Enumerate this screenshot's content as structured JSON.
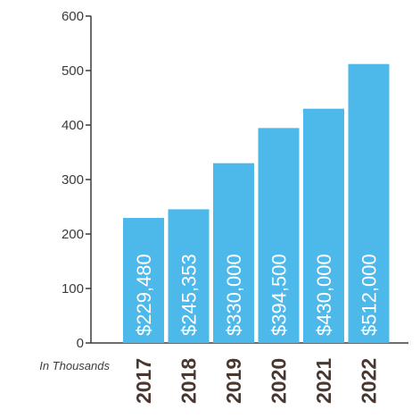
{
  "chart_data": {
    "type": "bar",
    "categories": [
      "2017",
      "2018",
      "2019",
      "2020",
      "2021",
      "2022"
    ],
    "values": [
      229.48,
      245.353,
      330,
      394.5,
      430,
      512
    ],
    "data_labels": [
      "$229,480",
      "$245,353",
      "$330,000",
      "$394,500",
      "$430,000",
      "$512,000"
    ],
    "ylim": [
      0,
      600
    ],
    "yticks": [
      0,
      100,
      200,
      300,
      400,
      500,
      600
    ],
    "ytick_labels": [
      "0",
      "100",
      "200",
      "300",
      "400",
      "500",
      "600"
    ],
    "note": "In Thousands",
    "bar_color": "#4db8ea",
    "axis_color": "#3b3b3b",
    "category_color": "#4a3830",
    "grid": false,
    "legend": "none"
  }
}
